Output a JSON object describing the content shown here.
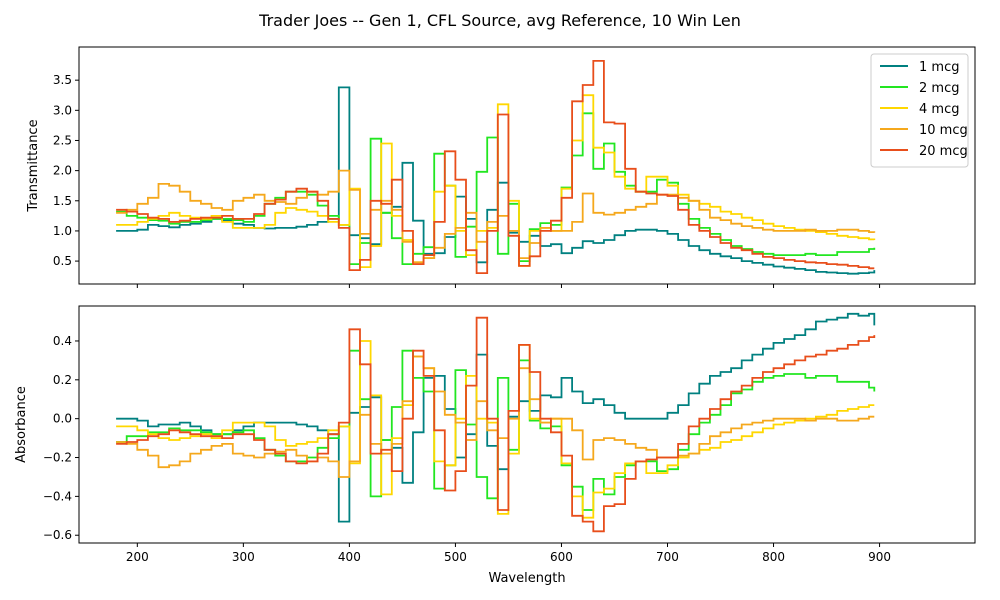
{
  "chart_data": {
    "type": "line",
    "title": "Trader Joes -- Gen 1, CFL Source, avg Reference, 10 Win Len",
    "xlabel": "Wavelength",
    "xlim": [
      145,
      990
    ],
    "xticks": [
      200,
      300,
      400,
      500,
      600,
      700,
      800,
      900
    ],
    "step": true,
    "legend_position": "top-right",
    "x": [
      180,
      190,
      200,
      210,
      220,
      230,
      240,
      250,
      260,
      270,
      280,
      290,
      300,
      310,
      320,
      330,
      340,
      350,
      360,
      370,
      380,
      390,
      400,
      410,
      420,
      430,
      440,
      450,
      460,
      470,
      480,
      490,
      500,
      510,
      520,
      530,
      540,
      550,
      560,
      570,
      580,
      590,
      600,
      610,
      620,
      630,
      640,
      650,
      660,
      670,
      680,
      690,
      700,
      710,
      720,
      730,
      740,
      750,
      760,
      770,
      780,
      790,
      800,
      810,
      820,
      830,
      840,
      850,
      860,
      870,
      880,
      890,
      895
    ],
    "panels": [
      {
        "ylabel": "Transmittance",
        "ylim": [
          0.12,
          4.05
        ],
        "yticks": [
          0.5,
          1.0,
          1.5,
          2.0,
          2.5,
          3.0,
          3.5
        ],
        "ytick_labels": [
          "0.5",
          "1.0",
          "1.5",
          "2.0",
          "2.5",
          "3.0",
          "3.5"
        ],
        "series": [
          {
            "name": "1 mcg",
            "color": "#008080",
            "values": [
              1.0,
              1.0,
              1.02,
              1.1,
              1.08,
              1.06,
              1.1,
              1.12,
              1.15,
              1.2,
              1.18,
              1.12,
              1.1,
              1.05,
              1.04,
              1.05,
              1.05,
              1.07,
              1.1,
              1.15,
              1.2,
              3.38,
              0.93,
              0.88,
              0.78,
              1.3,
              1.4,
              2.13,
              1.17,
              0.62,
              0.63,
              0.9,
              1.57,
              1.2,
              0.48,
              1.35,
              1.8,
              0.97,
              0.82,
              0.92,
              0.75,
              0.78,
              0.63,
              0.72,
              0.83,
              0.8,
              0.85,
              0.93,
              1.0,
              1.02,
              1.02,
              1.0,
              0.95,
              0.85,
              0.75,
              0.68,
              0.62,
              0.58,
              0.55,
              0.5,
              0.47,
              0.44,
              0.41,
              0.39,
              0.37,
              0.35,
              0.32,
              0.31,
              0.3,
              0.29,
              0.3,
              0.31,
              0.35
            ]
          },
          {
            "name": "2 mcg",
            "color": "#22e620",
            "values": [
              1.32,
              1.25,
              1.22,
              1.18,
              1.17,
              1.12,
              1.15,
              1.15,
              1.18,
              1.2,
              1.2,
              1.18,
              1.15,
              1.25,
              1.45,
              1.55,
              1.65,
              1.65,
              1.6,
              1.42,
              1.25,
              1.1,
              0.45,
              0.8,
              2.53,
              1.3,
              0.88,
              0.45,
              0.62,
              0.73,
              2.28,
              1.75,
              0.57,
              1.07,
              1.98,
              2.55,
              0.62,
              1.45,
              0.5,
              1.03,
              1.13,
              1.1,
              1.72,
              2.25,
              2.95,
              2.03,
              2.45,
              1.98,
              1.75,
              1.65,
              1.65,
              1.85,
              1.8,
              1.45,
              1.2,
              1.05,
              0.95,
              0.85,
              0.75,
              0.7,
              0.65,
              0.62,
              0.6,
              0.6,
              0.6,
              0.62,
              0.6,
              0.6,
              0.65,
              0.65,
              0.65,
              0.7,
              0.72
            ]
          },
          {
            "name": "4 mcg",
            "color": "#ffd700",
            "values": [
              1.1,
              1.1,
              1.15,
              1.2,
              1.25,
              1.3,
              1.25,
              1.22,
              1.2,
              1.25,
              1.15,
              1.05,
              1.05,
              1.05,
              1.1,
              1.3,
              1.38,
              1.35,
              1.32,
              1.25,
              1.15,
              1.1,
              1.7,
              0.4,
              0.75,
              2.45,
              1.25,
              0.85,
              0.48,
              0.55,
              1.65,
              1.75,
              1.0,
              0.6,
              1.0,
              1.05,
              3.1,
              1.5,
              0.42,
              1.0,
              1.05,
              1.0,
              1.7,
              2.5,
              3.25,
              2.38,
              2.3,
              1.9,
              1.7,
              1.65,
              1.9,
              1.9,
              1.75,
              1.6,
              1.5,
              1.45,
              1.4,
              1.32,
              1.28,
              1.22,
              1.18,
              1.12,
              1.08,
              1.05,
              1.02,
              1.0,
              0.98,
              0.95,
              0.92,
              0.9,
              0.88,
              0.86,
              0.85
            ]
          },
          {
            "name": "10 mcg",
            "color": "#f5a81c",
            "values": [
              1.3,
              1.35,
              1.45,
              1.55,
              1.78,
              1.75,
              1.65,
              1.5,
              1.45,
              1.38,
              1.35,
              1.5,
              1.55,
              1.6,
              1.5,
              1.48,
              1.45,
              1.55,
              1.65,
              1.6,
              1.65,
              2.0,
              1.68,
              0.95,
              1.35,
              1.5,
              1.35,
              0.82,
              0.48,
              0.55,
              0.72,
              0.95,
              1.05,
              1.3,
              0.82,
              1.15,
              1.25,
              1.0,
              0.55,
              0.8,
              1.05,
              1.0,
              1.0,
              1.15,
              1.62,
              1.3,
              1.27,
              1.3,
              1.35,
              1.4,
              1.45,
              1.6,
              1.6,
              1.55,
              1.5,
              1.35,
              1.22,
              1.18,
              1.12,
              1.08,
              1.05,
              1.02,
              1.0,
              1.0,
              1.0,
              1.02,
              1.0,
              1.0,
              1.02,
              1.02,
              1.0,
              0.98,
              0.97
            ]
          },
          {
            "name": "20 mcg",
            "color": "#e84e1b",
            "values": [
              1.35,
              1.32,
              1.28,
              1.22,
              1.2,
              1.15,
              1.17,
              1.2,
              1.22,
              1.22,
              1.25,
              1.2,
              1.2,
              1.28,
              1.45,
              1.52,
              1.65,
              1.7,
              1.65,
              1.5,
              1.2,
              1.05,
              0.35,
              0.52,
              1.5,
              1.45,
              1.85,
              1.0,
              0.45,
              0.6,
              1.15,
              2.32,
              1.85,
              0.68,
              0.3,
              1.0,
              2.93,
              0.92,
              0.42,
              0.58,
              1.0,
              1.17,
              1.55,
              3.15,
              3.42,
              3.82,
              2.8,
              2.78,
              2.03,
              1.65,
              1.62,
              1.6,
              1.58,
              1.35,
              1.1,
              1.0,
              0.9,
              0.8,
              0.72,
              0.68,
              0.62,
              0.57,
              0.55,
              0.52,
              0.5,
              0.48,
              0.47,
              0.45,
              0.44,
              0.42,
              0.4,
              0.38,
              0.38
            ]
          }
        ]
      },
      {
        "ylabel": "Absorbance",
        "ylim": [
          -0.64,
          0.58
        ],
        "yticks": [
          -0.6,
          -0.4,
          -0.2,
          0.0,
          0.2,
          0.4
        ],
        "ytick_labels": [
          "−0.6",
          "−0.4",
          "−0.2",
          "0.0",
          "0.2",
          "0.4"
        ],
        "series": [
          {
            "name": "1 mcg",
            "color": "#008080",
            "values": [
              0.0,
              0.0,
              -0.01,
              -0.04,
              -0.03,
              -0.03,
              -0.02,
              -0.04,
              -0.06,
              -0.08,
              -0.08,
              -0.06,
              -0.04,
              -0.02,
              -0.02,
              -0.02,
              -0.02,
              -0.03,
              -0.04,
              -0.06,
              -0.08,
              -0.53,
              0.03,
              0.06,
              0.11,
              -0.11,
              -0.15,
              -0.33,
              -0.07,
              0.21,
              0.22,
              0.05,
              -0.2,
              -0.08,
              0.33,
              -0.14,
              -0.26,
              0.01,
              0.09,
              0.04,
              0.12,
              0.11,
              0.21,
              0.14,
              0.08,
              0.1,
              0.07,
              0.03,
              0.0,
              0.0,
              0.0,
              0.0,
              0.03,
              0.07,
              0.13,
              0.18,
              0.22,
              0.24,
              0.26,
              0.3,
              0.33,
              0.36,
              0.39,
              0.41,
              0.43,
              0.46,
              0.5,
              0.51,
              0.52,
              0.54,
              0.53,
              0.54,
              0.48
            ]
          },
          {
            "name": "2 mcg",
            "color": "#22e620",
            "values": [
              -0.12,
              -0.09,
              -0.09,
              -0.07,
              -0.07,
              -0.05,
              -0.06,
              -0.06,
              -0.07,
              -0.08,
              -0.08,
              -0.07,
              -0.06,
              -0.1,
              -0.16,
              -0.19,
              -0.22,
              -0.22,
              -0.2,
              -0.15,
              -0.1,
              -0.04,
              0.35,
              0.1,
              -0.4,
              -0.11,
              0.06,
              0.35,
              0.21,
              0.14,
              -0.36,
              -0.24,
              0.25,
              -0.03,
              -0.3,
              -0.41,
              0.21,
              -0.16,
              0.3,
              -0.01,
              -0.05,
              -0.04,
              -0.24,
              -0.35,
              -0.47,
              -0.31,
              -0.39,
              -0.3,
              -0.24,
              -0.22,
              -0.22,
              -0.27,
              -0.26,
              -0.16,
              -0.08,
              -0.02,
              0.02,
              0.07,
              0.13,
              0.15,
              0.19,
              0.21,
              0.22,
              0.23,
              0.23,
              0.21,
              0.22,
              0.22,
              0.19,
              0.19,
              0.19,
              0.16,
              0.14
            ]
          },
          {
            "name": "4 mcg",
            "color": "#ffd700",
            "values": [
              -0.04,
              -0.04,
              -0.06,
              -0.08,
              -0.1,
              -0.11,
              -0.1,
              -0.09,
              -0.08,
              -0.1,
              -0.06,
              -0.02,
              -0.02,
              -0.02,
              -0.04,
              -0.11,
              -0.14,
              -0.13,
              -0.12,
              -0.1,
              -0.06,
              -0.04,
              -0.23,
              0.4,
              0.12,
              -0.39,
              -0.1,
              0.07,
              0.32,
              0.26,
              -0.22,
              -0.24,
              0.0,
              0.22,
              0.0,
              -0.02,
              -0.49,
              -0.18,
              0.38,
              0.0,
              -0.02,
              0.0,
              -0.23,
              -0.4,
              -0.51,
              -0.38,
              -0.36,
              -0.28,
              -0.23,
              -0.22,
              -0.28,
              -0.28,
              -0.24,
              -0.2,
              -0.18,
              -0.16,
              -0.15,
              -0.12,
              -0.11,
              -0.09,
              -0.07,
              -0.05,
              -0.03,
              -0.02,
              -0.01,
              0.0,
              0.01,
              0.02,
              0.04,
              0.05,
              0.06,
              0.07,
              0.07
            ]
          },
          {
            "name": "10 mcg",
            "color": "#f5a81c",
            "values": [
              -0.12,
              -0.13,
              -0.16,
              -0.19,
              -0.25,
              -0.24,
              -0.22,
              -0.18,
              -0.16,
              -0.14,
              -0.13,
              -0.18,
              -0.19,
              -0.2,
              -0.18,
              -0.17,
              -0.16,
              -0.19,
              -0.22,
              -0.2,
              -0.22,
              -0.3,
              -0.22,
              0.02,
              -0.13,
              -0.18,
              -0.13,
              0.09,
              0.32,
              0.26,
              0.14,
              0.02,
              -0.02,
              -0.11,
              0.09,
              -0.06,
              -0.1,
              0.0,
              0.26,
              0.1,
              -0.02,
              0.0,
              0.0,
              -0.06,
              -0.21,
              -0.11,
              -0.1,
              -0.11,
              -0.13,
              -0.15,
              -0.16,
              -0.2,
              -0.2,
              -0.19,
              -0.18,
              -0.13,
              -0.09,
              -0.07,
              -0.05,
              -0.03,
              -0.02,
              -0.01,
              0.0,
              0.0,
              0.0,
              -0.01,
              0.0,
              0.0,
              -0.01,
              -0.01,
              0.0,
              0.01,
              0.01
            ]
          },
          {
            "name": "20 mcg",
            "color": "#e84e1b",
            "values": [
              -0.13,
              -0.12,
              -0.11,
              -0.09,
              -0.08,
              -0.06,
              -0.07,
              -0.08,
              -0.09,
              -0.09,
              -0.1,
              -0.08,
              -0.08,
              -0.11,
              -0.16,
              -0.18,
              -0.22,
              -0.23,
              -0.22,
              -0.18,
              -0.08,
              -0.02,
              0.46,
              0.28,
              -0.18,
              -0.16,
              -0.27,
              0.0,
              0.35,
              0.22,
              -0.06,
              -0.37,
              -0.27,
              0.17,
              0.52,
              0.0,
              -0.47,
              0.04,
              0.38,
              0.24,
              0.0,
              -0.07,
              -0.19,
              -0.5,
              -0.53,
              -0.58,
              -0.45,
              -0.44,
              -0.31,
              -0.22,
              -0.21,
              -0.2,
              -0.2,
              -0.13,
              -0.04,
              0.0,
              0.05,
              0.1,
              0.14,
              0.17,
              0.21,
              0.24,
              0.26,
              0.28,
              0.3,
              0.32,
              0.33,
              0.35,
              0.36,
              0.38,
              0.4,
              0.42,
              0.43
            ]
          }
        ]
      }
    ]
  }
}
